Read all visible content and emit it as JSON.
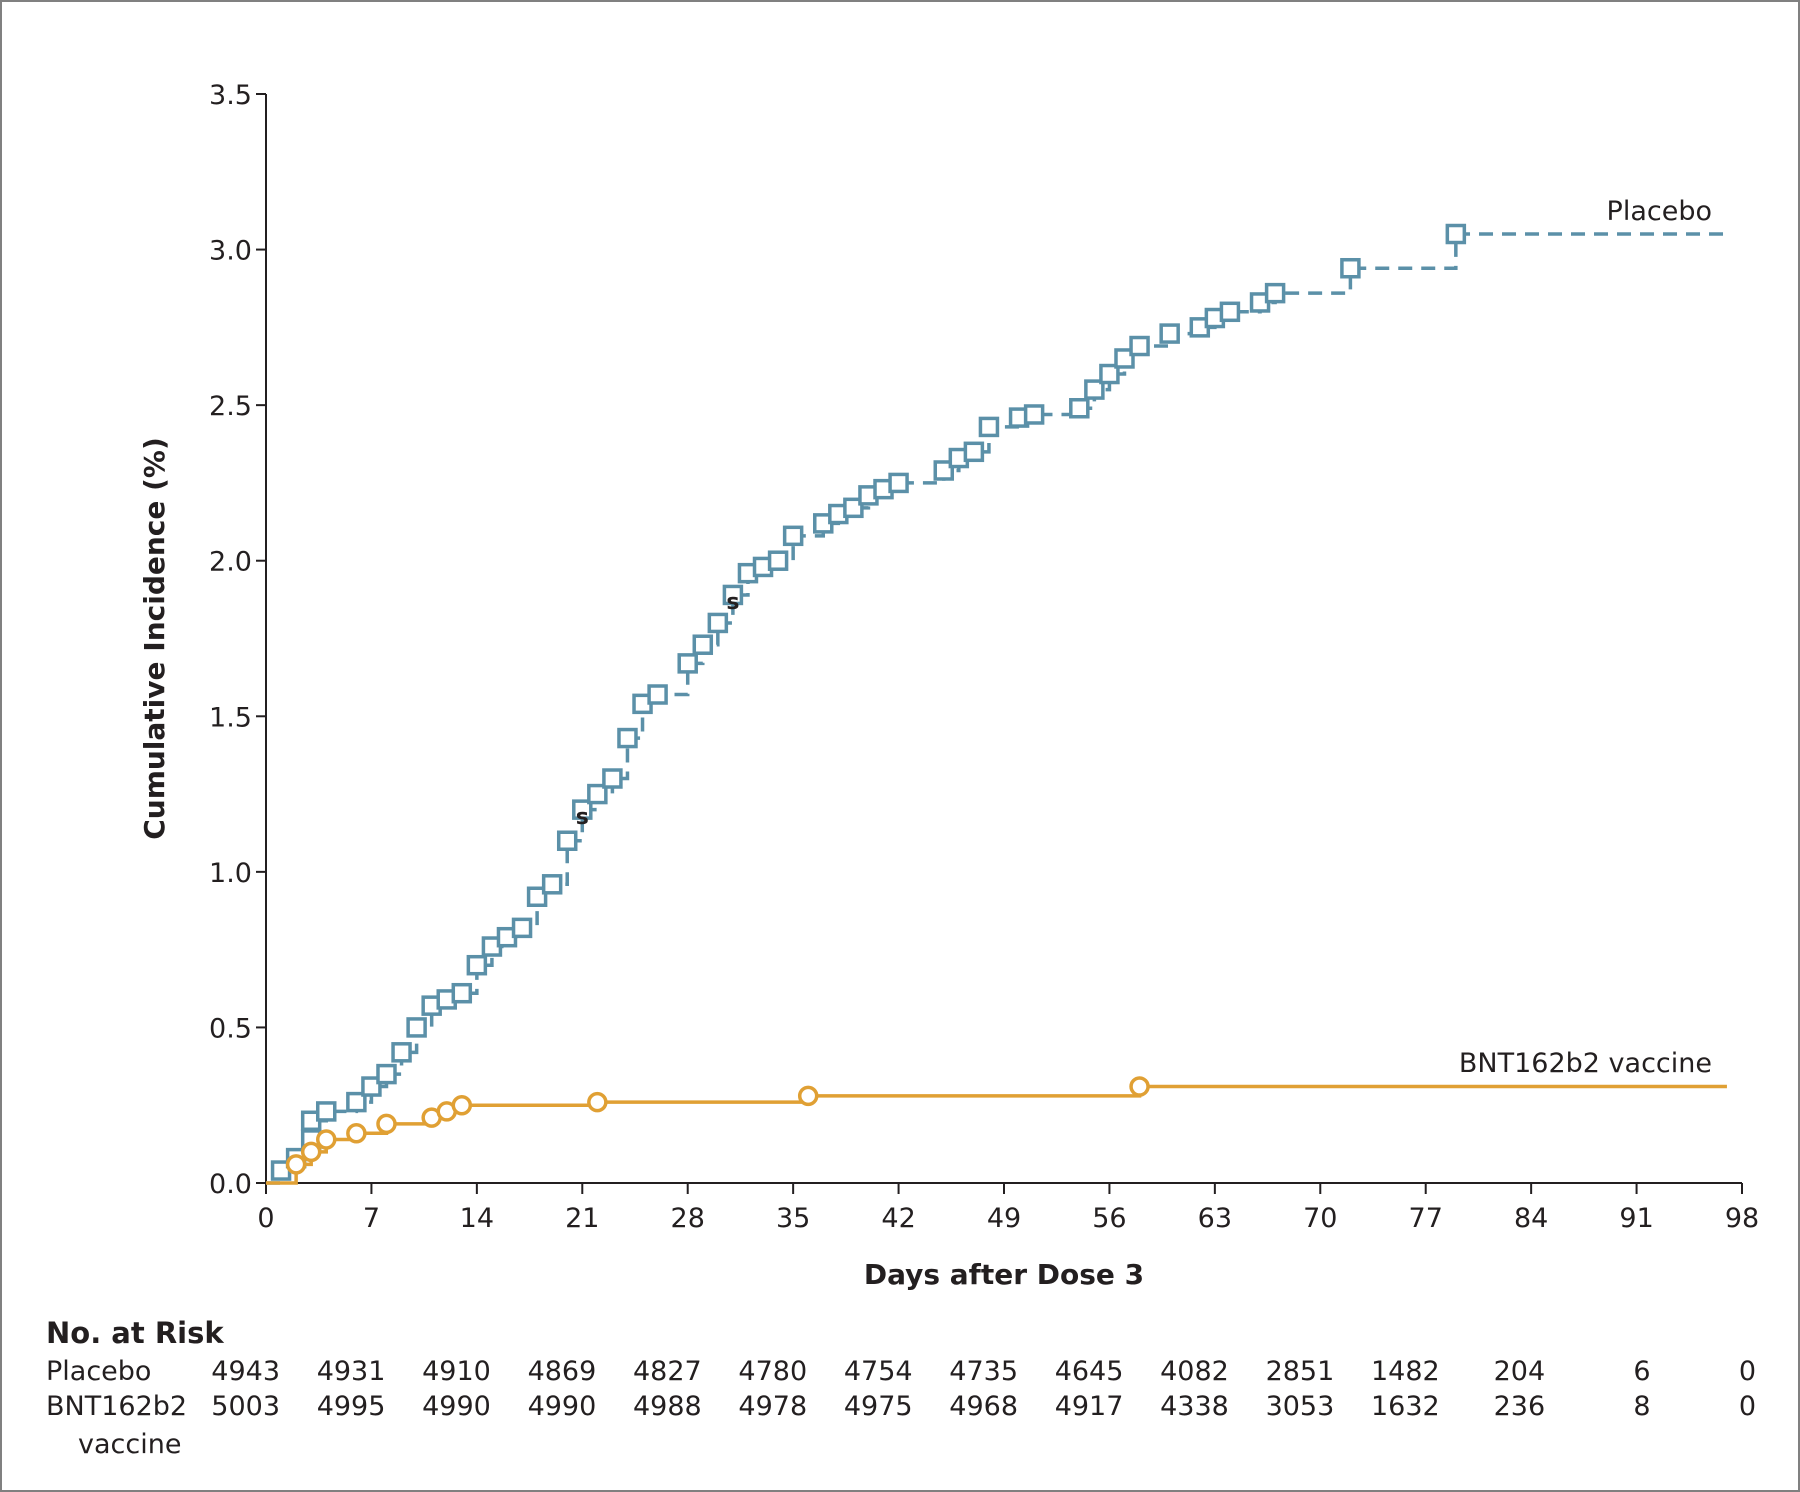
{
  "chart_data": {
    "type": "line",
    "chart_kind": "kaplan-meier cumulative incidence",
    "xlabel": "Days after Dose 3",
    "ylabel": "Cumulative Incidence (%)",
    "xlim": [
      0,
      98
    ],
    "ylim": [
      0,
      3.5
    ],
    "x_ticks": [
      "0",
      "7",
      "14",
      "21",
      "28",
      "35",
      "42",
      "49",
      "56",
      "63",
      "70",
      "77",
      "84",
      "91",
      "98"
    ],
    "y_ticks": [
      "0.0",
      "0.5",
      "1.0",
      "1.5",
      "2.0",
      "2.5",
      "3.0",
      "3.5"
    ],
    "grid": false,
    "series": [
      {
        "name": "Placebo",
        "color": "#5b90a8",
        "line_style": "dashed",
        "marker": "square",
        "points": [
          [
            0,
            0
          ],
          [
            1,
            0.04
          ],
          [
            2,
            0.08
          ],
          [
            3,
            0.14
          ],
          [
            3,
            0.2
          ],
          [
            4,
            0.23
          ],
          [
            6,
            0.26
          ],
          [
            7,
            0.31
          ],
          [
            8,
            0.35
          ],
          [
            9,
            0.42
          ],
          [
            10,
            0.5
          ],
          [
            11,
            0.57
          ],
          [
            12,
            0.59
          ],
          [
            13,
            0.61
          ],
          [
            14,
            0.7
          ],
          [
            15,
            0.76
          ],
          [
            16,
            0.79
          ],
          [
            17,
            0.82
          ],
          [
            18,
            0.92
          ],
          [
            19,
            0.96
          ],
          [
            20,
            1.1
          ],
          [
            21,
            1.2
          ],
          [
            22,
            1.25
          ],
          [
            23,
            1.3
          ],
          [
            24,
            1.43
          ],
          [
            25,
            1.54
          ],
          [
            26,
            1.57
          ],
          [
            28,
            1.67
          ],
          [
            29,
            1.73
          ],
          [
            30,
            1.8
          ],
          [
            31,
            1.89
          ],
          [
            32,
            1.96
          ],
          [
            33,
            1.98
          ],
          [
            34,
            2.0
          ],
          [
            35,
            2.08
          ],
          [
            37,
            2.12
          ],
          [
            38,
            2.15
          ],
          [
            39,
            2.17
          ],
          [
            40,
            2.21
          ],
          [
            41,
            2.23
          ],
          [
            42,
            2.25
          ],
          [
            45,
            2.29
          ],
          [
            46,
            2.33
          ],
          [
            47,
            2.35
          ],
          [
            48,
            2.43
          ],
          [
            50,
            2.46
          ],
          [
            51,
            2.47
          ],
          [
            54,
            2.49
          ],
          [
            55,
            2.55
          ],
          [
            56,
            2.6
          ],
          [
            57,
            2.65
          ],
          [
            58,
            2.69
          ],
          [
            60,
            2.73
          ],
          [
            62,
            2.75
          ],
          [
            63,
            2.78
          ],
          [
            64,
            2.8
          ],
          [
            66,
            2.83
          ],
          [
            67,
            2.86
          ],
          [
            72,
            2.94
          ],
          [
            79,
            3.05
          ],
          [
            97,
            3.05
          ]
        ]
      },
      {
        "name": "BNT162b2 vaccine",
        "color": "#e0a034",
        "line_style": "solid",
        "marker": "circle",
        "points": [
          [
            0,
            0
          ],
          [
            2,
            0.06
          ],
          [
            3,
            0.1
          ],
          [
            4,
            0.14
          ],
          [
            6,
            0.16
          ],
          [
            8,
            0.19
          ],
          [
            11,
            0.21
          ],
          [
            12,
            0.23
          ],
          [
            13,
            0.25
          ],
          [
            22,
            0.26
          ],
          [
            36,
            0.28
          ],
          [
            58,
            0.31
          ],
          [
            97,
            0.31
          ]
        ]
      }
    ],
    "censor_marks": [
      {
        "label": "s",
        "x": 21,
        "y": 1.18
      },
      {
        "label": "s",
        "x": 31,
        "y": 1.87
      }
    ],
    "number_at_risk": {
      "title": "No. at Risk",
      "rows": [
        {
          "label": [
            "Placebo"
          ],
          "values": [
            "4943",
            "4931",
            "4910",
            "4869",
            "4827",
            "4780",
            "4754",
            "4735",
            "4645",
            "4082",
            "2851",
            "1482",
            "204",
            "6",
            "0"
          ]
        },
        {
          "label": [
            "BNT162b2",
            "vaccine"
          ],
          "values": [
            "5003",
            "4995",
            "4990",
            "4990",
            "4988",
            "4978",
            "4975",
            "4968",
            "4917",
            "4338",
            "3053",
            "1632",
            "236",
            "8",
            "0"
          ]
        }
      ]
    }
  }
}
